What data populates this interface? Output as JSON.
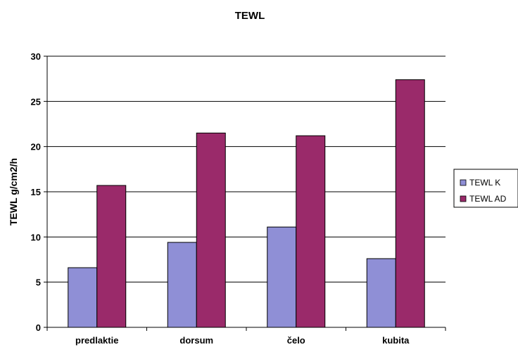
{
  "chart_data": {
    "type": "bar",
    "title": "TEWL",
    "xlabel": "",
    "ylabel": "TEWL g/cm2/h",
    "categories": [
      "predlaktie",
      "dorsum",
      "čelo",
      "kubita"
    ],
    "series": [
      {
        "name": "TEWL K",
        "values": [
          6.6,
          9.4,
          11.1,
          7.6
        ],
        "color": "#8f8fd6"
      },
      {
        "name": "TEWL AD",
        "values": [
          15.7,
          21.5,
          21.2,
          27.4
        ],
        "color": "#9a2a6a"
      }
    ],
    "ylim": [
      0,
      30
    ],
    "yticks": [
      0,
      5,
      10,
      15,
      20,
      25,
      30
    ],
    "grid": true,
    "legend_position": "right"
  }
}
